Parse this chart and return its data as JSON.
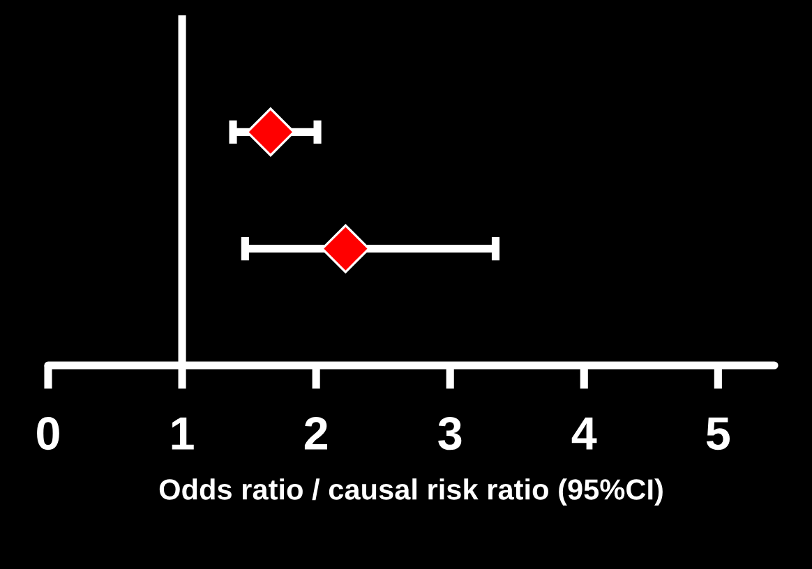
{
  "chart_data": {
    "type": "scatter",
    "orientation": "horizontal",
    "categories": [
      null,
      null
    ],
    "series": [
      {
        "color": "#ff0000",
        "values": [
          1.66,
          2.22
        ],
        "errors": [
          [
            1.38,
            2.01
          ],
          [
            1.47,
            3.34
          ]
        ]
      }
    ],
    "marker": "diamond",
    "xlabel": "Odds ratio / causal risk ratio (95%CI)",
    "xlim": [
      0,
      5.42
    ],
    "xticks": [
      0,
      1,
      2,
      3,
      4,
      5
    ],
    "ref_lines": [
      {
        "axis": "x",
        "value": 1,
        "color": "#ffffff"
      }
    ],
    "tick_labels": "x",
    "grid": false
  }
}
